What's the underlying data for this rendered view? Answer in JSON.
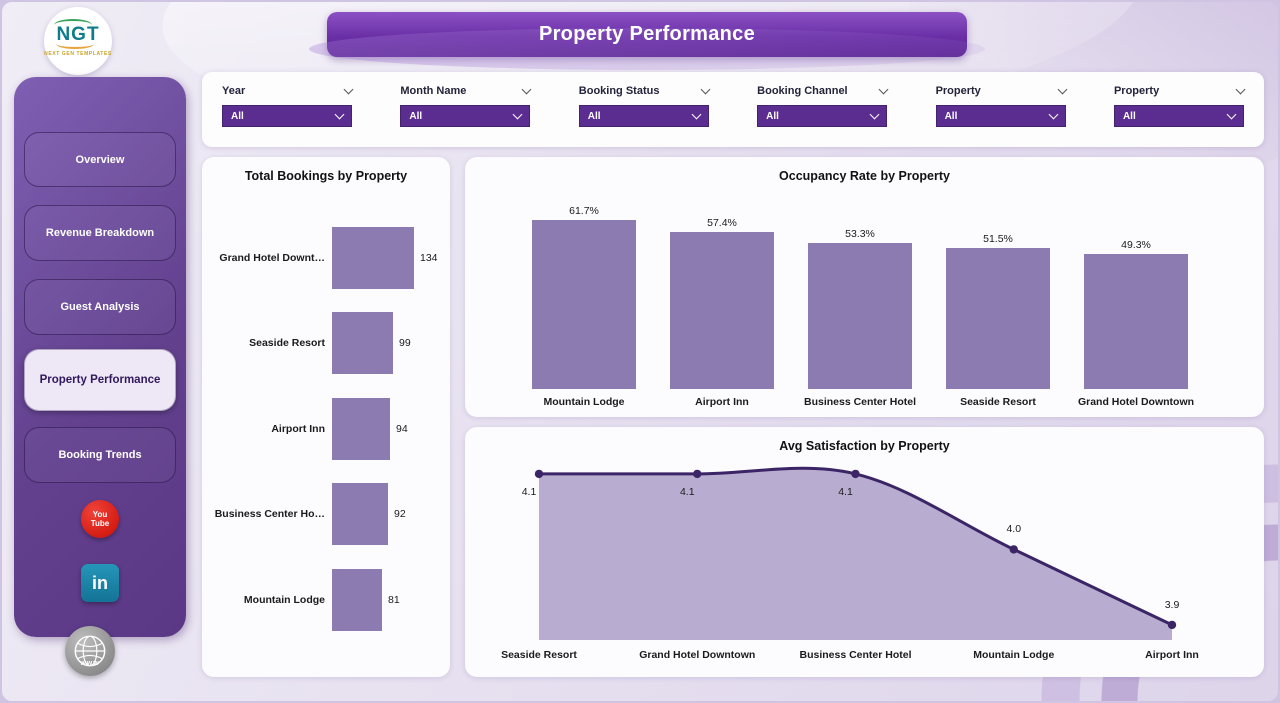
{
  "meta": {
    "title": "Property Performance"
  },
  "logo": {
    "text": "NGT",
    "subtext": "NEXT GEN TEMPLATES"
  },
  "sidebar": {
    "items": [
      {
        "label": "Overview",
        "active": false
      },
      {
        "label": "Revenue Breakdown",
        "active": false
      },
      {
        "label": "Guest Analysis",
        "active": false
      },
      {
        "label": "Property Performance",
        "active": true
      },
      {
        "label": "Booking Trends",
        "active": false
      }
    ],
    "social": [
      {
        "name": "youtube",
        "line1": "You",
        "line2": "Tube"
      },
      {
        "name": "linkedin",
        "label": "in"
      },
      {
        "name": "website",
        "label": "www"
      }
    ]
  },
  "filters": [
    {
      "label": "Year",
      "value": "All"
    },
    {
      "label": "Month Name",
      "value": "All"
    },
    {
      "label": "Booking Status",
      "value": "All"
    },
    {
      "label": "Booking Channel",
      "value": "All"
    },
    {
      "label": "Property",
      "value": "All"
    },
    {
      "label": "Property",
      "value": "All"
    }
  ],
  "chart_data": [
    {
      "type": "bar",
      "orientation": "horizontal",
      "title": "Total Bookings by Property",
      "categories": [
        "Grand Hotel Downt…",
        "Seaside Resort",
        "Airport Inn",
        "Business Center Ho…",
        "Mountain Lodge"
      ],
      "values": [
        134,
        99,
        94,
        92,
        81
      ],
      "xlabel": "",
      "ylabel": "",
      "grid": false,
      "legend": "none"
    },
    {
      "type": "bar",
      "orientation": "vertical",
      "title": "Occupancy Rate by Property",
      "categories": [
        "Mountain Lodge",
        "Airport Inn",
        "Business Center Hotel",
        "Seaside Resort",
        "Grand Hotel Downtown"
      ],
      "values": [
        61.7,
        57.4,
        53.3,
        51.5,
        49.3
      ],
      "value_labels": [
        "61.7%",
        "57.4%",
        "53.3%",
        "51.5%",
        "49.3%"
      ],
      "xlabel": "",
      "ylabel": "",
      "grid": false,
      "legend": "none"
    },
    {
      "type": "area",
      "title": "Avg Satisfaction by Property",
      "categories": [
        "Seaside Resort",
        "Grand Hotel Downtown",
        "Business Center Hotel",
        "Mountain Lodge",
        "Airport Inn"
      ],
      "values": [
        4.1,
        4.1,
        4.1,
        4.0,
        3.9
      ],
      "value_labels": [
        "4.1",
        "4.1",
        "4.1",
        "4.0",
        "3.9"
      ],
      "ylim": [
        3.88,
        4.15
      ],
      "xlabel": "",
      "ylabel": "",
      "grid": false,
      "legend": "none"
    }
  ],
  "colors": {
    "bar": "#8c7bb1",
    "line": "#3b2566",
    "area_fill": "#b4a9cd",
    "banner": "#6a2fa6",
    "sidebar": "#63418f",
    "dropdown": "#5b2d90",
    "youtube_red": "#d31a10",
    "linkedin_teal": "#1d87aa"
  }
}
